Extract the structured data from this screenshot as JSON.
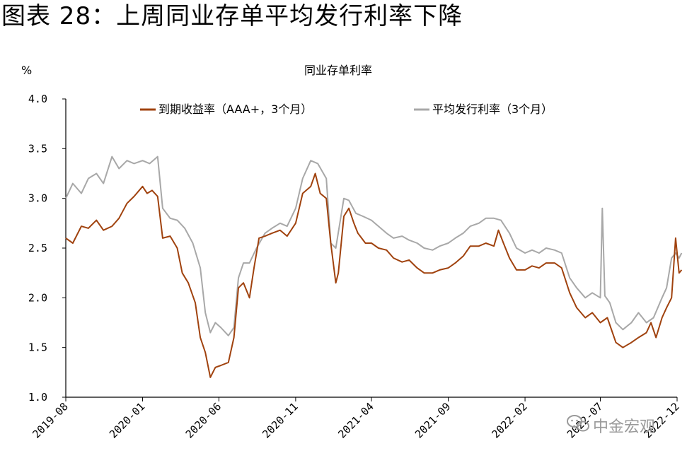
{
  "figure": {
    "title": "图表 28：上周同业存单平均发行利率下降",
    "watermark": "中金宏观"
  },
  "colors": {
    "series_maturity": "#A0420E",
    "series_issue": "#A8A8A8",
    "axis": "#000000"
  },
  "chart_data": {
    "type": "line",
    "title": "同业存单利率",
    "ylabel": "%",
    "xlabel": "",
    "ylim": [
      1.0,
      4.0
    ],
    "yticks": [
      "4.0",
      "3.5",
      "3.0",
      "2.5",
      "2.0",
      "1.5",
      "1.0"
    ],
    "xlim": [
      "2019-08",
      "2022-12"
    ],
    "xticks": [
      "2019-08",
      "2020-01",
      "2020-06",
      "2020-11",
      "2021-04",
      "2021-09",
      "2022-02",
      "2022-07",
      "2022-12"
    ],
    "legend_position": "top",
    "grid": false,
    "series": [
      {
        "name": "到期收益率（AAA+，3个月）",
        "color_key": "series_maturity",
        "points": [
          [
            "2019-08-01",
            2.6
          ],
          [
            "2019-08-15",
            2.55
          ],
          [
            "2019-09-01",
            2.72
          ],
          [
            "2019-09-15",
            2.7
          ],
          [
            "2019-10-01",
            2.78
          ],
          [
            "2019-10-15",
            2.68
          ],
          [
            "2019-11-01",
            2.72
          ],
          [
            "2019-11-15",
            2.8
          ],
          [
            "2019-12-01",
            2.95
          ],
          [
            "2019-12-15",
            3.02
          ],
          [
            "2020-01-01",
            3.12
          ],
          [
            "2020-01-10",
            3.05
          ],
          [
            "2020-01-20",
            3.08
          ],
          [
            "2020-01-31",
            3.02
          ],
          [
            "2020-02-10",
            2.6
          ],
          [
            "2020-02-25",
            2.62
          ],
          [
            "2020-03-10",
            2.5
          ],
          [
            "2020-03-20",
            2.25
          ],
          [
            "2020-04-01",
            2.15
          ],
          [
            "2020-04-15",
            1.95
          ],
          [
            "2020-04-25",
            1.6
          ],
          [
            "2020-05-05",
            1.45
          ],
          [
            "2020-05-15",
            1.2
          ],
          [
            "2020-05-25",
            1.3
          ],
          [
            "2020-06-05",
            1.32
          ],
          [
            "2020-06-20",
            1.35
          ],
          [
            "2020-07-01",
            1.6
          ],
          [
            "2020-07-10",
            2.1
          ],
          [
            "2020-07-20",
            2.15
          ],
          [
            "2020-08-01",
            2.0
          ],
          [
            "2020-08-10",
            2.3
          ],
          [
            "2020-08-20",
            2.6
          ],
          [
            "2020-09-01",
            2.62
          ],
          [
            "2020-09-15",
            2.65
          ],
          [
            "2020-10-01",
            2.68
          ],
          [
            "2020-10-15",
            2.62
          ],
          [
            "2020-11-01",
            2.75
          ],
          [
            "2020-11-15",
            3.05
          ],
          [
            "2020-12-01",
            3.12
          ],
          [
            "2020-12-10",
            3.25
          ],
          [
            "2020-12-20",
            3.05
          ],
          [
            "2021-01-01",
            3.0
          ],
          [
            "2021-01-10",
            2.55
          ],
          [
            "2021-01-20",
            2.15
          ],
          [
            "2021-01-25",
            2.25
          ],
          [
            "2021-02-05",
            2.82
          ],
          [
            "2021-02-15",
            2.9
          ],
          [
            "2021-02-25",
            2.75
          ],
          [
            "2021-03-05",
            2.65
          ],
          [
            "2021-03-20",
            2.55
          ],
          [
            "2021-04-01",
            2.55
          ],
          [
            "2021-04-15",
            2.5
          ],
          [
            "2021-05-01",
            2.48
          ],
          [
            "2021-05-15",
            2.4
          ],
          [
            "2021-06-01",
            2.36
          ],
          [
            "2021-06-15",
            2.38
          ],
          [
            "2021-07-01",
            2.3
          ],
          [
            "2021-07-15",
            2.25
          ],
          [
            "2021-08-01",
            2.25
          ],
          [
            "2021-08-15",
            2.28
          ],
          [
            "2021-09-01",
            2.3
          ],
          [
            "2021-09-15",
            2.35
          ],
          [
            "2021-10-01",
            2.42
          ],
          [
            "2021-10-15",
            2.52
          ],
          [
            "2021-11-01",
            2.52
          ],
          [
            "2021-11-15",
            2.55
          ],
          [
            "2021-12-01",
            2.52
          ],
          [
            "2021-12-10",
            2.68
          ],
          [
            "2021-12-20",
            2.55
          ],
          [
            "2022-01-01",
            2.4
          ],
          [
            "2022-01-15",
            2.28
          ],
          [
            "2022-02-01",
            2.28
          ],
          [
            "2022-02-15",
            2.32
          ],
          [
            "2022-03-01",
            2.3
          ],
          [
            "2022-03-15",
            2.35
          ],
          [
            "2022-04-01",
            2.35
          ],
          [
            "2022-04-15",
            2.3
          ],
          [
            "2022-05-01",
            2.05
          ],
          [
            "2022-05-15",
            1.9
          ],
          [
            "2022-06-01",
            1.8
          ],
          [
            "2022-06-15",
            1.85
          ],
          [
            "2022-07-01",
            1.75
          ],
          [
            "2022-07-15",
            1.8
          ],
          [
            "2022-08-01",
            1.55
          ],
          [
            "2022-08-15",
            1.5
          ],
          [
            "2022-09-01",
            1.55
          ],
          [
            "2022-09-15",
            1.6
          ],
          [
            "2022-10-01",
            1.65
          ],
          [
            "2022-10-10",
            1.75
          ],
          [
            "2022-10-20",
            1.6
          ],
          [
            "2022-11-01",
            1.8
          ],
          [
            "2022-11-10",
            1.9
          ],
          [
            "2022-11-20",
            2.0
          ],
          [
            "2022-11-28",
            2.6
          ],
          [
            "2022-12-05",
            2.25
          ],
          [
            "2022-12-10",
            2.28
          ]
        ]
      },
      {
        "name": "平均发行利率（3个月）",
        "color_key": "series_issue",
        "points": [
          [
            "2019-08-01",
            3.0
          ],
          [
            "2019-08-15",
            3.15
          ],
          [
            "2019-09-01",
            3.05
          ],
          [
            "2019-09-15",
            3.2
          ],
          [
            "2019-10-01",
            3.25
          ],
          [
            "2019-10-15",
            3.15
          ],
          [
            "2019-11-01",
            3.42
          ],
          [
            "2019-11-15",
            3.3
          ],
          [
            "2019-12-01",
            3.38
          ],
          [
            "2019-12-15",
            3.35
          ],
          [
            "2020-01-01",
            3.38
          ],
          [
            "2020-01-15",
            3.35
          ],
          [
            "2020-01-31",
            3.42
          ],
          [
            "2020-02-10",
            2.9
          ],
          [
            "2020-02-25",
            2.8
          ],
          [
            "2020-03-10",
            2.78
          ],
          [
            "2020-03-25",
            2.7
          ],
          [
            "2020-04-10",
            2.55
          ],
          [
            "2020-04-25",
            2.3
          ],
          [
            "2020-05-05",
            1.85
          ],
          [
            "2020-05-15",
            1.65
          ],
          [
            "2020-05-25",
            1.75
          ],
          [
            "2020-06-05",
            1.7
          ],
          [
            "2020-06-20",
            1.62
          ],
          [
            "2020-07-01",
            1.7
          ],
          [
            "2020-07-10",
            2.2
          ],
          [
            "2020-07-20",
            2.35
          ],
          [
            "2020-08-01",
            2.35
          ],
          [
            "2020-08-15",
            2.5
          ],
          [
            "2020-09-01",
            2.65
          ],
          [
            "2020-09-15",
            2.7
          ],
          [
            "2020-10-01",
            2.75
          ],
          [
            "2020-10-15",
            2.72
          ],
          [
            "2020-11-01",
            2.9
          ],
          [
            "2020-11-15",
            3.2
          ],
          [
            "2020-12-01",
            3.38
          ],
          [
            "2020-12-15",
            3.35
          ],
          [
            "2021-01-01",
            3.2
          ],
          [
            "2021-01-10",
            2.55
          ],
          [
            "2021-01-20",
            2.5
          ],
          [
            "2021-02-05",
            3.0
          ],
          [
            "2021-02-15",
            2.98
          ],
          [
            "2021-03-01",
            2.85
          ],
          [
            "2021-03-15",
            2.82
          ],
          [
            "2021-04-01",
            2.78
          ],
          [
            "2021-04-15",
            2.72
          ],
          [
            "2021-05-01",
            2.65
          ],
          [
            "2021-05-15",
            2.6
          ],
          [
            "2021-06-01",
            2.62
          ],
          [
            "2021-06-15",
            2.58
          ],
          [
            "2021-07-01",
            2.55
          ],
          [
            "2021-07-15",
            2.5
          ],
          [
            "2021-08-01",
            2.48
          ],
          [
            "2021-08-15",
            2.52
          ],
          [
            "2021-09-01",
            2.55
          ],
          [
            "2021-09-15",
            2.6
          ],
          [
            "2021-10-01",
            2.65
          ],
          [
            "2021-10-15",
            2.72
          ],
          [
            "2021-11-01",
            2.75
          ],
          [
            "2021-11-15",
            2.8
          ],
          [
            "2021-12-01",
            2.8
          ],
          [
            "2021-12-15",
            2.78
          ],
          [
            "2022-01-01",
            2.65
          ],
          [
            "2022-01-15",
            2.5
          ],
          [
            "2022-02-01",
            2.45
          ],
          [
            "2022-02-15",
            2.48
          ],
          [
            "2022-03-01",
            2.45
          ],
          [
            "2022-03-15",
            2.5
          ],
          [
            "2022-04-01",
            2.48
          ],
          [
            "2022-04-15",
            2.45
          ],
          [
            "2022-05-01",
            2.2
          ],
          [
            "2022-05-15",
            2.1
          ],
          [
            "2022-06-01",
            2.0
          ],
          [
            "2022-06-15",
            2.05
          ],
          [
            "2022-07-01",
            2.0
          ],
          [
            "2022-07-05",
            2.9
          ],
          [
            "2022-07-10",
            2.02
          ],
          [
            "2022-07-20",
            1.95
          ],
          [
            "2022-08-01",
            1.75
          ],
          [
            "2022-08-15",
            1.68
          ],
          [
            "2022-09-01",
            1.75
          ],
          [
            "2022-09-15",
            1.85
          ],
          [
            "2022-10-01",
            1.75
          ],
          [
            "2022-10-15",
            1.8
          ],
          [
            "2022-11-01",
            2.0
          ],
          [
            "2022-11-10",
            2.1
          ],
          [
            "2022-11-20",
            2.4
          ],
          [
            "2022-11-28",
            2.45
          ],
          [
            "2022-12-05",
            2.4
          ],
          [
            "2022-12-10",
            2.45
          ]
        ]
      }
    ]
  }
}
